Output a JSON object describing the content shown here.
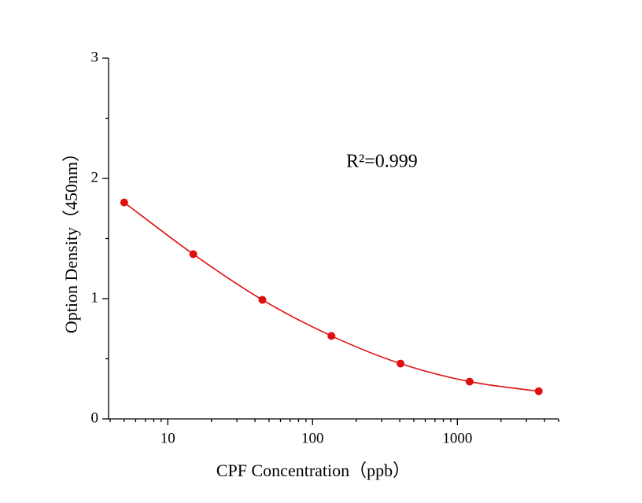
{
  "chart_data": {
    "type": "line",
    "x_label": "CPF Concentration（ppb）",
    "y_label": "Option Density（450nm）",
    "annotation": "R²=0.999",
    "x": [
      5,
      15,
      45,
      135,
      405,
      1215,
      3645
    ],
    "series": [
      {
        "color": "#e01010",
        "values": [
          1.8,
          1.37,
          0.99,
          0.69,
          0.46,
          0.31,
          0.23
        ]
      }
    ],
    "xscale": "log",
    "xlim": [
      3.9,
      5000
    ],
    "xticks": [
      10,
      100,
      1000
    ],
    "xminorticks": [
      4,
      5,
      6,
      7,
      8,
      9,
      20,
      30,
      40,
      50,
      60,
      70,
      80,
      90,
      200,
      300,
      400,
      500,
      600,
      700,
      800,
      900,
      2000,
      3000,
      4000,
      5000
    ],
    "ylim": [
      0,
      3
    ],
    "yticks": [
      0,
      1,
      2,
      3
    ],
    "yminorticks": [
      0.5,
      1.5,
      2.5
    ]
  }
}
